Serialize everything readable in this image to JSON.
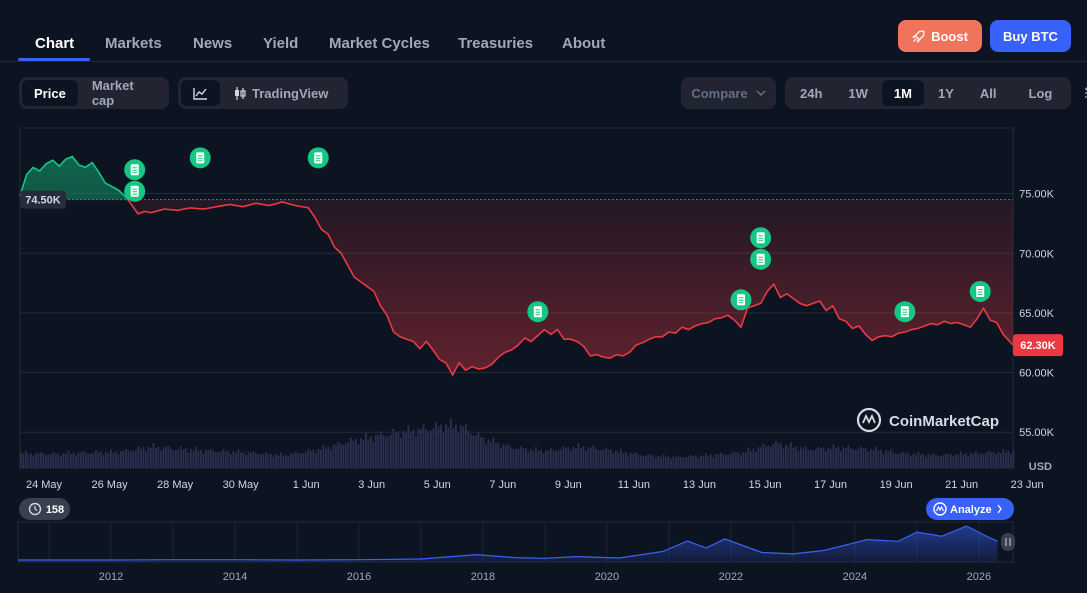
{
  "nav": {
    "tabs": [
      "Chart",
      "Markets",
      "News",
      "Yield",
      "Market Cycles",
      "Treasuries",
      "About"
    ],
    "active": "Chart",
    "boost_label": "Boost",
    "buy_label": "Buy BTC"
  },
  "toolbar": {
    "price_label": "Price",
    "marketcap_label": "Market cap",
    "tradingview_label": "TradingView",
    "compare_label": "Compare",
    "ranges": [
      "24h",
      "1W",
      "1M",
      "1Y",
      "All"
    ],
    "selected_range": "1M",
    "log_label": "Log"
  },
  "badges": {
    "start_price": "74.50K",
    "current_price": "62.30K",
    "currency": "USD",
    "events_count": "158",
    "analyze_label": "Analyze",
    "watermark": "CoinMarketCap"
  },
  "colors": {
    "background": "#0d1421",
    "up": "#16c784",
    "down": "#ea3943",
    "accent": "#3861fb",
    "boost": "#f0735c"
  },
  "chart_data": {
    "type": "line",
    "title": "",
    "xlabel": "",
    "ylabel": "USD",
    "x_ticks": [
      "24 May",
      "26 May",
      "28 May",
      "30 May",
      "1 Jun",
      "3 Jun",
      "5 Jun",
      "7 Jun",
      "9 Jun",
      "11 Jun",
      "13 Jun",
      "15 Jun",
      "17 Jun",
      "19 Jun",
      "21 Jun",
      "23 Jun"
    ],
    "y_ticks": [
      "55.00K",
      "60.00K",
      "65.00K",
      "70.00K",
      "75.00K"
    ],
    "ylim": [
      52000,
      80500
    ],
    "baseline": 74500,
    "series": [
      {
        "values": [
          [
            0.0,
            74800
          ],
          [
            0.2,
            76600
          ],
          [
            0.4,
            77200
          ],
          [
            0.6,
            76900
          ],
          [
            0.8,
            77500
          ],
          [
            1.0,
            77800
          ],
          [
            1.2,
            77300
          ],
          [
            1.4,
            77900
          ],
          [
            1.6,
            78100
          ],
          [
            1.8,
            77400
          ],
          [
            2.0,
            77200
          ],
          [
            2.2,
            77600
          ],
          [
            2.4,
            76800
          ],
          [
            2.6,
            75900
          ],
          [
            2.8,
            75600
          ],
          [
            3.0,
            75300
          ],
          [
            3.2,
            74800
          ],
          [
            3.4,
            74100
          ],
          [
            3.6,
            73300
          ],
          [
            3.8,
            73500
          ],
          [
            4.0,
            73400
          ],
          [
            4.4,
            73700
          ],
          [
            4.8,
            73600
          ],
          [
            5.2,
            73800
          ],
          [
            5.6,
            73700
          ],
          [
            6.0,
            73900
          ],
          [
            6.4,
            74100
          ],
          [
            6.8,
            73900
          ],
          [
            7.2,
            74200
          ],
          [
            7.6,
            74000
          ],
          [
            8.0,
            74300
          ],
          [
            8.4,
            74000
          ],
          [
            8.8,
            73800
          ],
          [
            9.0,
            73000
          ],
          [
            9.2,
            72000
          ],
          [
            9.4,
            71600
          ],
          [
            9.6,
            70500
          ],
          [
            9.8,
            70000
          ],
          [
            10.0,
            69000
          ],
          [
            10.2,
            68000
          ],
          [
            10.4,
            67600
          ],
          [
            10.6,
            67200
          ],
          [
            10.8,
            66800
          ],
          [
            11.0,
            65600
          ],
          [
            11.2,
            64800
          ],
          [
            11.4,
            63400
          ],
          [
            11.6,
            63000
          ],
          [
            11.8,
            62800
          ],
          [
            12.0,
            62600
          ],
          [
            12.2,
            62000
          ],
          [
            12.4,
            62600
          ],
          [
            12.6,
            61900
          ],
          [
            12.8,
            61100
          ],
          [
            13.0,
            60800
          ],
          [
            13.2,
            59800
          ],
          [
            13.4,
            60800
          ],
          [
            13.6,
            60200
          ],
          [
            13.8,
            60500
          ],
          [
            14.0,
            60300
          ],
          [
            14.2,
            60400
          ],
          [
            14.4,
            60700
          ],
          [
            14.6,
            61300
          ],
          [
            14.8,
            61700
          ],
          [
            15.0,
            61900
          ],
          [
            15.2,
            62300
          ],
          [
            15.4,
            62900
          ],
          [
            15.6,
            62600
          ],
          [
            15.8,
            63100
          ],
          [
            16.0,
            63600
          ],
          [
            16.2,
            63200
          ],
          [
            16.4,
            63600
          ],
          [
            16.6,
            62800
          ],
          [
            16.8,
            62800
          ],
          [
            17.0,
            62600
          ],
          [
            17.2,
            62200
          ],
          [
            17.4,
            61400
          ],
          [
            17.6,
            61500
          ],
          [
            17.8,
            61300
          ],
          [
            18.0,
            61200
          ],
          [
            18.2,
            61500
          ],
          [
            18.4,
            61400
          ],
          [
            18.6,
            61700
          ],
          [
            18.8,
            62300
          ],
          [
            19.0,
            62500
          ],
          [
            19.2,
            62800
          ],
          [
            19.4,
            63000
          ],
          [
            19.6,
            63000
          ],
          [
            19.8,
            63400
          ],
          [
            20.0,
            63300
          ],
          [
            20.2,
            63800
          ],
          [
            20.4,
            63600
          ],
          [
            20.6,
            63900
          ],
          [
            20.8,
            64100
          ],
          [
            21.0,
            64200
          ],
          [
            21.2,
            64500
          ],
          [
            21.4,
            64600
          ],
          [
            21.6,
            64800
          ],
          [
            21.8,
            64400
          ],
          [
            22.0,
            63800
          ],
          [
            22.2,
            65400
          ],
          [
            22.4,
            65600
          ],
          [
            22.6,
            65800
          ],
          [
            22.8,
            66800
          ],
          [
            23.0,
            67400
          ],
          [
            23.2,
            66300
          ],
          [
            23.4,
            66600
          ],
          [
            23.6,
            66200
          ],
          [
            23.8,
            65800
          ],
          [
            24.0,
            65600
          ],
          [
            24.2,
            65800
          ],
          [
            24.4,
            66000
          ],
          [
            24.6,
            65200
          ],
          [
            24.8,
            65600
          ],
          [
            25.0,
            64500
          ],
          [
            25.2,
            64300
          ],
          [
            25.4,
            63700
          ],
          [
            25.6,
            63900
          ],
          [
            25.8,
            63200
          ],
          [
            26.0,
            62700
          ],
          [
            26.2,
            63000
          ],
          [
            26.4,
            63100
          ],
          [
            26.6,
            63000
          ],
          [
            26.8,
            63300
          ],
          [
            27.0,
            63400
          ],
          [
            27.2,
            63600
          ],
          [
            27.4,
            63700
          ],
          [
            27.6,
            63900
          ],
          [
            27.8,
            64100
          ],
          [
            28.0,
            64000
          ],
          [
            28.2,
            64300
          ],
          [
            28.4,
            64100
          ],
          [
            28.6,
            64200
          ],
          [
            28.8,
            64000
          ],
          [
            29.0,
            63800
          ],
          [
            29.2,
            64500
          ],
          [
            29.4,
            65400
          ],
          [
            29.6,
            64400
          ],
          [
            29.8,
            64200
          ],
          [
            30.0,
            63200
          ],
          [
            30.3,
            62300
          ]
        ]
      }
    ],
    "events": [
      [
        3.5,
        77000
      ],
      [
        3.5,
        75200
      ],
      [
        5.5,
        78000
      ],
      [
        9.1,
        78000
      ],
      [
        15.8,
        65100
      ],
      [
        22.0,
        66100
      ],
      [
        22.6,
        71300
      ],
      [
        22.6,
        69500
      ],
      [
        27.0,
        65100
      ],
      [
        29.3,
        66800
      ]
    ],
    "volume": [
      [
        0.0,
        0.35
      ],
      [
        1.0,
        0.33
      ],
      [
        2.0,
        0.36
      ],
      [
        3.0,
        0.38
      ],
      [
        4.0,
        0.5
      ],
      [
        5.0,
        0.44
      ],
      [
        6.0,
        0.4
      ],
      [
        7.0,
        0.36
      ],
      [
        8.0,
        0.3
      ],
      [
        9.0,
        0.42
      ],
      [
        10.0,
        0.62
      ],
      [
        11.0,
        0.78
      ],
      [
        12.0,
        0.88
      ],
      [
        13.0,
        1.0
      ],
      [
        13.5,
        0.96
      ],
      [
        14.0,
        0.72
      ],
      [
        15.0,
        0.48
      ],
      [
        16.0,
        0.4
      ],
      [
        17.0,
        0.5
      ],
      [
        18.0,
        0.42
      ],
      [
        19.0,
        0.3
      ],
      [
        20.0,
        0.26
      ],
      [
        21.0,
        0.3
      ],
      [
        22.0,
        0.36
      ],
      [
        23.0,
        0.58
      ],
      [
        24.0,
        0.44
      ],
      [
        25.0,
        0.48
      ],
      [
        26.0,
        0.44
      ],
      [
        27.0,
        0.34
      ],
      [
        28.0,
        0.3
      ],
      [
        29.0,
        0.34
      ],
      [
        30.0,
        0.38
      ],
      [
        30.3,
        0.4
      ]
    ],
    "navigator": {
      "x_ticks": [
        "2012",
        "2014",
        "2016",
        "2018",
        "2020",
        "2022",
        "2024",
        "2026"
      ],
      "values": [
        [
          2010.5,
          0
        ],
        [
          2012.0,
          0.0
        ],
        [
          2013.0,
          0.01
        ],
        [
          2014.0,
          0.01
        ],
        [
          2015.0,
          0.0
        ],
        [
          2016.0,
          0.01
        ],
        [
          2017.0,
          0.03
        ],
        [
          2017.9,
          0.16
        ],
        [
          2018.5,
          0.07
        ],
        [
          2019.0,
          0.05
        ],
        [
          2019.5,
          0.1
        ],
        [
          2020.2,
          0.06
        ],
        [
          2020.9,
          0.25
        ],
        [
          2021.3,
          0.56
        ],
        [
          2021.6,
          0.35
        ],
        [
          2021.9,
          0.62
        ],
        [
          2022.5,
          0.22
        ],
        [
          2023.0,
          0.18
        ],
        [
          2023.5,
          0.28
        ],
        [
          2024.2,
          0.6
        ],
        [
          2024.7,
          0.55
        ],
        [
          2025.0,
          0.82
        ],
        [
          2025.4,
          0.7
        ],
        [
          2025.8,
          1.0
        ],
        [
          2026.1,
          0.72
        ],
        [
          2026.3,
          0.55
        ]
      ]
    }
  }
}
